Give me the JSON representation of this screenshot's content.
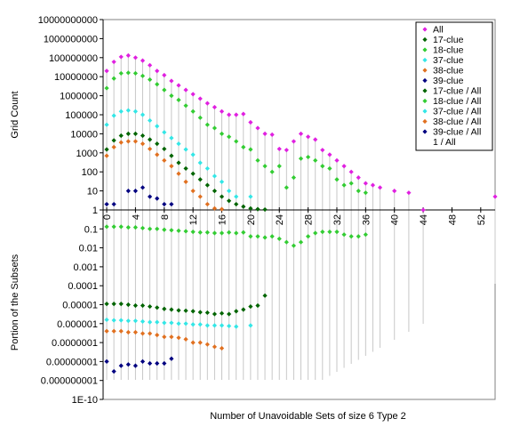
{
  "chart_data": {
    "type": "scatter",
    "xlabel": "Number of Unavoidable Sets of size 6 Type 2",
    "upper_ylabel": "Grid Count",
    "lower_ylabel": "Portion of the Subsets",
    "x_range": [
      -0.5,
      54
    ],
    "x_ticks": [
      0,
      4,
      8,
      12,
      16,
      20,
      24,
      28,
      32,
      36,
      40,
      44,
      48,
      52
    ],
    "x_tick_labels": [
      "0",
      "4",
      "8",
      "12",
      "16",
      "20",
      "24",
      "28",
      "32",
      "36",
      "40",
      "44",
      "48",
      "52"
    ],
    "upper_yscale": "log",
    "upper_ylim": [
      1,
      10000000000
    ],
    "upper_yticks": [
      1,
      10,
      100,
      1000,
      10000,
      100000,
      1000000,
      10000000,
      100000000,
      1000000000,
      10000000000
    ],
    "upper_ytick_labels": [
      "1",
      "10",
      "100",
      "1000",
      "10000",
      "100000",
      "1000000",
      "10000000",
      "100000000",
      "1000000000",
      "10000000000"
    ],
    "lower_yscale": "log",
    "lower_ylim": [
      1e-10,
      1
    ],
    "lower_yticks": [
      1,
      0.1,
      0.01,
      0.001,
      0.0001,
      1e-05,
      1e-06,
      1e-07,
      1e-08,
      1e-09,
      1e-10
    ],
    "lower_ytick_labels": [
      "1",
      "0.1",
      "0.01",
      "0.001",
      "0.0001",
      "0.00001",
      "0.000001",
      "0.0000001",
      "0.00000001",
      "0.000000001",
      "1E-10"
    ],
    "grid": false,
    "legend_position": "top-right",
    "series": [
      {
        "name": "All",
        "panel": "upper",
        "color": "#e020e0",
        "x": [
          0,
          1,
          2,
          3,
          4,
          5,
          6,
          7,
          8,
          9,
          10,
          11,
          12,
          13,
          14,
          15,
          16,
          17,
          18,
          19,
          20,
          21,
          22,
          23,
          24,
          25,
          26,
          27,
          28,
          29,
          30,
          31,
          32,
          33,
          34,
          35,
          36,
          37,
          38,
          40,
          42,
          44,
          54
        ],
        "y": [
          20000000,
          60000000,
          110000000,
          130000000,
          100000000,
          70000000,
          40000000,
          20000000,
          12000000,
          6000000,
          3500000,
          2000000,
          1200000,
          700000,
          400000,
          250000,
          150000,
          100000,
          100000,
          110000,
          40000,
          20000,
          10000,
          9000,
          1600,
          1400,
          4000,
          10000,
          7000,
          5000,
          1400,
          800,
          400,
          200,
          100,
          50,
          25,
          20,
          15,
          10,
          8,
          1,
          5
        ]
      },
      {
        "name": "17-clue",
        "panel": "upper",
        "color": "#006400",
        "x": [
          0,
          1,
          2,
          3,
          4,
          5,
          6,
          7,
          8,
          9,
          10,
          11,
          12,
          13,
          14,
          15,
          16,
          17,
          18,
          19,
          20,
          21,
          22
        ],
        "y": [
          1500,
          4500,
          8000,
          10000,
          10000,
          8000,
          5000,
          3000,
          1600,
          700,
          300,
          150,
          80,
          40,
          20,
          10,
          5,
          3,
          2,
          1.5,
          1.2,
          1.1,
          1.05
        ]
      },
      {
        "name": "18-clue",
        "panel": "upper",
        "color": "#33cc33",
        "x": [
          0,
          1,
          2,
          3,
          4,
          5,
          6,
          7,
          8,
          9,
          10,
          11,
          12,
          13,
          14,
          15,
          16,
          17,
          18,
          19,
          20,
          21,
          22,
          23,
          24,
          25,
          26,
          27,
          28,
          29,
          30,
          31,
          32,
          33,
          34,
          35,
          36
        ],
        "y": [
          2500000,
          8000000,
          15000000,
          16000000,
          15000000,
          11000000,
          7000000,
          4000000,
          2000000,
          1000000,
          600000,
          300000,
          150000,
          70000,
          30000,
          20000,
          10000,
          7000,
          4000,
          2000,
          1500,
          400,
          200,
          100,
          200,
          15,
          50,
          500,
          600,
          400,
          200,
          150,
          40,
          20,
          25,
          10,
          8
        ]
      },
      {
        "name": "37-clue",
        "panel": "upper",
        "color": "#33e6e6",
        "x": [
          0,
          1,
          2,
          3,
          4,
          5,
          6,
          7,
          8,
          9,
          10,
          11,
          12,
          13,
          14,
          15,
          16,
          17,
          18,
          20
        ],
        "y": [
          30000,
          90000,
          150000,
          170000,
          150000,
          100000,
          50000,
          25000,
          12000,
          6000,
          3000,
          1500,
          800,
          300,
          150,
          60,
          30,
          10,
          5,
          5
        ]
      },
      {
        "name": "38-clue",
        "panel": "upper",
        "color": "#e07020",
        "x": [
          0,
          1,
          2,
          3,
          4,
          5,
          6,
          7,
          8,
          9,
          10,
          11,
          12,
          13,
          14,
          15,
          16
        ],
        "y": [
          700,
          2000,
          3500,
          4000,
          4000,
          3000,
          1600,
          800,
          400,
          200,
          80,
          30,
          10,
          5,
          2,
          1.2,
          1.1
        ]
      },
      {
        "name": "39-clue",
        "panel": "upper",
        "color": "#000080",
        "x": [
          0,
          1,
          3,
          4,
          5,
          6,
          7,
          8,
          9
        ],
        "y": [
          2,
          2,
          10,
          10,
          15,
          5,
          4,
          2,
          2
        ]
      },
      {
        "name": "17-clue / All",
        "panel": "lower",
        "color": "#006400",
        "x": [
          0,
          1,
          2,
          3,
          4,
          5,
          6,
          7,
          8,
          9,
          10,
          11,
          12,
          13,
          14,
          15,
          16,
          17,
          18,
          19,
          20,
          21,
          22
        ],
        "y": [
          1.1e-05,
          1.1e-05,
          1.1e-05,
          1e-05,
          9e-06,
          9e-06,
          8e-06,
          7e-06,
          6e-06,
          5.5e-06,
          5e-06,
          4.8e-06,
          4.5e-06,
          4e-06,
          3.8e-06,
          3.2e-06,
          3.5e-06,
          3.2e-06,
          4.5e-06,
          5.5e-06,
          8e-06,
          9e-06,
          3e-05
        ]
      },
      {
        "name": "18-clue / All",
        "panel": "lower",
        "color": "#33cc33",
        "x": [
          0,
          1,
          2,
          3,
          4,
          5,
          6,
          7,
          8,
          9,
          10,
          11,
          12,
          13,
          14,
          15,
          16,
          17,
          18,
          19,
          20,
          21,
          22,
          23,
          24,
          25,
          26,
          27,
          28,
          29,
          30,
          31,
          32,
          33,
          34,
          35,
          36
        ],
        "y": [
          0.13,
          0.13,
          0.13,
          0.12,
          0.12,
          0.11,
          0.1,
          0.1,
          0.09,
          0.085,
          0.08,
          0.075,
          0.07,
          0.065,
          0.065,
          0.06,
          0.06,
          0.065,
          0.06,
          0.065,
          0.04,
          0.04,
          0.035,
          0.04,
          0.03,
          0.02,
          0.013,
          0.02,
          0.04,
          0.06,
          0.07,
          0.07,
          0.07,
          0.05,
          0.04,
          0.04,
          0.05
        ]
      },
      {
        "name": "37-clue / All",
        "panel": "lower",
        "color": "#33e6e6",
        "x": [
          0,
          1,
          2,
          3,
          4,
          5,
          6,
          7,
          8,
          9,
          10,
          11,
          12,
          13,
          14,
          15,
          16,
          17,
          18,
          20
        ],
        "y": [
          1.6e-06,
          1.5e-06,
          1.5e-06,
          1.4e-06,
          1.4e-06,
          1.3e-06,
          1.2e-06,
          1.2e-06,
          1.1e-06,
          1.1e-06,
          1e-06,
          1e-06,
          9e-07,
          9e-07,
          8e-07,
          8e-07,
          8e-07,
          7.5e-07,
          7e-07,
          8e-07
        ]
      },
      {
        "name": "38-clue / All",
        "panel": "lower",
        "color": "#e07020",
        "x": [
          0,
          1,
          2,
          3,
          4,
          5,
          6,
          7,
          8,
          9,
          10,
          11,
          12,
          13,
          14,
          15,
          16
        ],
        "y": [
          4e-07,
          4e-07,
          4e-07,
          3.5e-07,
          3.5e-07,
          3e-07,
          3e-07,
          2.5e-07,
          2e-07,
          2e-07,
          1.8e-07,
          1.5e-07,
          1e-07,
          1e-07,
          8e-08,
          6e-08,
          5e-08
        ]
      },
      {
        "name": "39-clue / All",
        "panel": "lower",
        "color": "#000080",
        "x": [
          0,
          1,
          2,
          3,
          4,
          5,
          6,
          7,
          8,
          9
        ],
        "y": [
          1e-08,
          3e-09,
          6e-09,
          7e-09,
          6e-09,
          1e-08,
          8e-09,
          8e-09,
          8e-09,
          1.4e-08
        ]
      },
      {
        "name": "1 / All",
        "panel": "lower",
        "color": "#000000",
        "x": [],
        "y": []
      }
    ]
  }
}
